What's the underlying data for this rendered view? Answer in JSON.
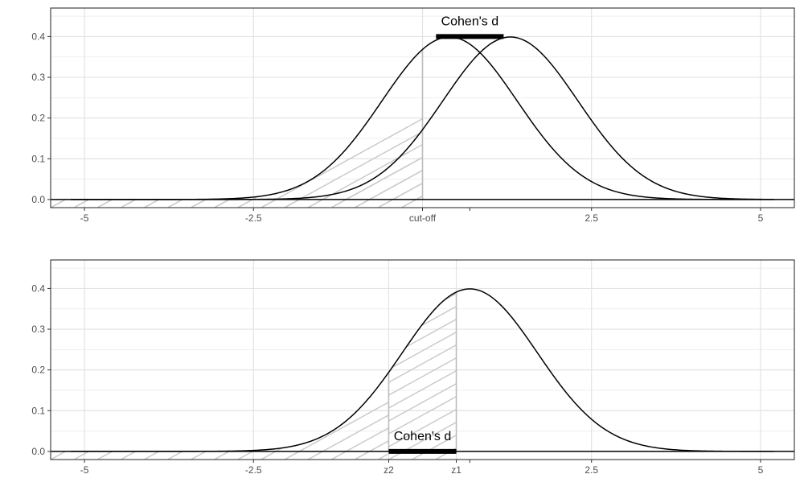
{
  "chart_data": [
    {
      "type": "line",
      "panel": "top",
      "xlim": [
        -5.5,
        5.5
      ],
      "ylim": [
        -0.02,
        0.47
      ],
      "x_ticks": [
        {
          "value": -5,
          "label": "-5"
        },
        {
          "value": -2.5,
          "label": "-2.5"
        },
        {
          "value": 0,
          "label": "cut-off"
        },
        {
          "value": 0.7,
          "label": ""
        },
        {
          "value": 2.5,
          "label": "2.5"
        },
        {
          "value": 5,
          "label": "5"
        }
      ],
      "y_ticks": [
        {
          "value": 0,
          "label": "0.0"
        },
        {
          "value": 0.1,
          "label": "0.1"
        },
        {
          "value": 0.2,
          "label": "0.2"
        },
        {
          "value": 0.3,
          "label": "0.3"
        },
        {
          "value": 0.4,
          "label": "0.4"
        }
      ],
      "grid": true,
      "series": [
        {
          "distribution": "normal",
          "mean": 0.4,
          "sd": 1,
          "hatched_below": 0
        },
        {
          "distribution": "normal",
          "mean": 1.3,
          "sd": 1,
          "hatched_below": 0
        }
      ],
      "cutoff_x": 0,
      "annotation": {
        "text": "Cohen's d",
        "x_start": 0.2,
        "x_end": 1.2,
        "y": 0.4
      }
    },
    {
      "type": "line",
      "panel": "bottom",
      "xlim": [
        -5.5,
        5.5
      ],
      "ylim": [
        -0.02,
        0.47
      ],
      "x_ticks": [
        {
          "value": -5,
          "label": "-5"
        },
        {
          "value": -2.5,
          "label": "-2.5"
        },
        {
          "value": -0.5,
          "label": "z2"
        },
        {
          "value": 0.5,
          "label": "z1"
        },
        {
          "value": 0.7,
          "label": ""
        },
        {
          "value": 2.5,
          "label": "2.5"
        },
        {
          "value": 5,
          "label": "5"
        }
      ],
      "y_ticks": [
        {
          "value": 0,
          "label": "0.0"
        },
        {
          "value": 0.1,
          "label": "0.1"
        },
        {
          "value": 0.2,
          "label": "0.2"
        },
        {
          "value": 0.3,
          "label": "0.3"
        },
        {
          "value": 0.4,
          "label": "0.4"
        }
      ],
      "grid": true,
      "series": [
        {
          "distribution": "normal",
          "mean": 0.7,
          "sd": 1,
          "hatched_between": [
            -0.5,
            0.5
          ],
          "hatched_below": -0.5
        }
      ],
      "z_lines": [
        -0.5,
        0.5
      ],
      "annotation": {
        "text": "Cohen's d",
        "x_start": -0.5,
        "x_end": 0.5,
        "y": 0
      }
    }
  ]
}
